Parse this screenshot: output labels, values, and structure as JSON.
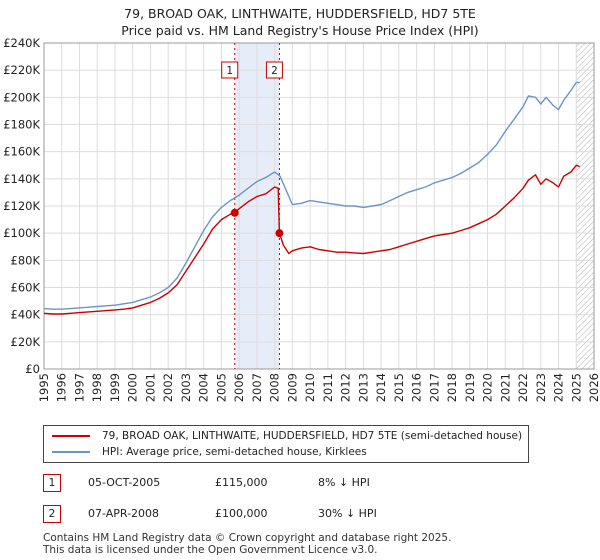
{
  "title_line1": "79, BROAD OAK, LINTHWAITE, HUDDERSFIELD, HD7 5TE",
  "title_line2": "Price paid vs. HM Land Registry's House Price Index (HPI)",
  "chart_data": {
    "type": "line",
    "x_range": [
      1995,
      2026
    ],
    "ylim": [
      0,
      240000
    ],
    "y_ticks": [
      0,
      20000,
      40000,
      60000,
      80000,
      100000,
      120000,
      140000,
      160000,
      180000,
      200000,
      220000,
      240000
    ],
    "y_tick_labels": [
      "£0",
      "£20K",
      "£40K",
      "£60K",
      "£80K",
      "£100K",
      "£120K",
      "£140K",
      "£160K",
      "£180K",
      "£200K",
      "£220K",
      "£240K"
    ],
    "x_ticks": [
      "1995",
      "1996",
      "1997",
      "1998",
      "1999",
      "2000",
      "2001",
      "2002",
      "2003",
      "2004",
      "2005",
      "2006",
      "2007",
      "2008",
      "2009",
      "2010",
      "2011",
      "2012",
      "2013",
      "2014",
      "2015",
      "2016",
      "2017",
      "2018",
      "2019",
      "2020",
      "2021",
      "2022",
      "2023",
      "2024",
      "2025",
      "2026"
    ],
    "shaded_period": [
      2005.75,
      2008.27
    ],
    "hatched_from": 2025.0,
    "series": [
      {
        "name": "79, BROAD OAK, LINTHWAITE, HUDDERSFIELD, HD7 5TE (semi-detached house)",
        "color": "#cc0000",
        "x": [
          1995,
          1995.5,
          1996,
          1996.5,
          1997,
          1997.5,
          1998,
          1998.5,
          1999,
          1999.5,
          2000,
          2000.5,
          2001,
          2001.5,
          2002,
          2002.5,
          2003,
          2003.5,
          2004,
          2004.5,
          2005,
          2005.5,
          2005.75,
          2006,
          2006.5,
          2007,
          2007.5,
          2008.0,
          2008.2,
          2008.27,
          2008.5,
          2008.8,
          2009,
          2009.5,
          2010,
          2010.5,
          2011,
          2011.5,
          2012,
          2012.5,
          2013,
          2013.5,
          2014,
          2014.5,
          2015,
          2015.5,
          2016,
          2016.5,
          2017,
          2017.5,
          2018,
          2018.5,
          2019,
          2019.5,
          2020,
          2020.5,
          2021,
          2021.5,
          2022,
          2022.3,
          2022.7,
          2023,
          2023.3,
          2023.7,
          2024,
          2024.3,
          2024.7,
          2025,
          2025.2
        ],
        "y": [
          41000,
          40500,
          40500,
          41000,
          41500,
          42000,
          42500,
          43000,
          43500,
          44000,
          45000,
          47000,
          49000,
          52000,
          56000,
          62000,
          72000,
          82000,
          92000,
          103000,
          110000,
          114000,
          115000,
          118000,
          123000,
          127000,
          129000,
          134000,
          133000,
          100000,
          91000,
          85000,
          87000,
          89000,
          90000,
          88000,
          87000,
          86000,
          86000,
          85500,
          85000,
          86000,
          87000,
          88000,
          90000,
          92000,
          94000,
          96000,
          98000,
          99000,
          100000,
          102000,
          104000,
          107000,
          110000,
          114000,
          120000,
          126000,
          133000,
          139000,
          143000,
          136000,
          140000,
          137000,
          134000,
          142000,
          145000,
          150000,
          149000
        ]
      },
      {
        "name": "HPI: Average price, semi-detached house, Kirklees",
        "color": "#6b95c8",
        "x": [
          1995,
          1995.5,
          1996,
          1996.5,
          1997,
          1997.5,
          1998,
          1998.5,
          1999,
          1999.5,
          2000,
          2000.5,
          2001,
          2001.5,
          2002,
          2002.5,
          2003,
          2003.5,
          2004,
          2004.5,
          2005,
          2005.5,
          2006,
          2006.5,
          2007,
          2007.5,
          2008,
          2008.3,
          2008.6,
          2009,
          2009.5,
          2010,
          2010.5,
          2011,
          2011.5,
          2012,
          2012.5,
          2013,
          2013.5,
          2014,
          2014.5,
          2015,
          2015.5,
          2016,
          2016.5,
          2017,
          2017.5,
          2018,
          2018.5,
          2019,
          2019.5,
          2020,
          2020.5,
          2021,
          2021.5,
          2022,
          2022.3,
          2022.7,
          2023,
          2023.3,
          2023.7,
          2024,
          2024.3,
          2024.7,
          2025,
          2025.2
        ],
        "y": [
          44500,
          44000,
          44000,
          44500,
          45000,
          45500,
          46000,
          46500,
          47000,
          48000,
          49000,
          51000,
          53000,
          56000,
          60000,
          67000,
          78000,
          90000,
          102000,
          112000,
          119000,
          124000,
          128000,
          133000,
          138000,
          141000,
          145000,
          142000,
          133000,
          121000,
          122000,
          124000,
          123000,
          122000,
          121000,
          120000,
          120000,
          119000,
          120000,
          121000,
          124000,
          127000,
          130000,
          132000,
          134000,
          137000,
          139000,
          141000,
          144000,
          148000,
          152000,
          158000,
          165000,
          175000,
          184000,
          193000,
          201000,
          200000,
          195000,
          200000,
          194000,
          191000,
          198000,
          205000,
          211000,
          211000
        ]
      }
    ],
    "markers": [
      {
        "id": "1",
        "x": 2005.75,
        "y": 115000
      },
      {
        "id": "2",
        "x": 2008.27,
        "y": 100000
      }
    ]
  },
  "legend": {
    "entry1": "79, BROAD OAK, LINTHWAITE, HUDDERSFIELD, HD7 5TE (semi-detached house)",
    "entry2": "HPI: Average price, semi-detached house, Kirklees"
  },
  "transactions": [
    {
      "id": "1",
      "date": "05-OCT-2005",
      "price": "£115,000",
      "hpi": "8% ↓ HPI"
    },
    {
      "id": "2",
      "date": "07-APR-2008",
      "price": "£100,000",
      "hpi": "30% ↓ HPI"
    }
  ],
  "footer": {
    "line1": "Contains HM Land Registry data © Crown copyright and database right 2025.",
    "line2": "This data is licensed under the Open Government Licence v3.0."
  },
  "colors": {
    "property": "#cc0000",
    "hpi": "#6b95c8",
    "shade": "#e6ecf8",
    "grid": "#dddddd"
  }
}
